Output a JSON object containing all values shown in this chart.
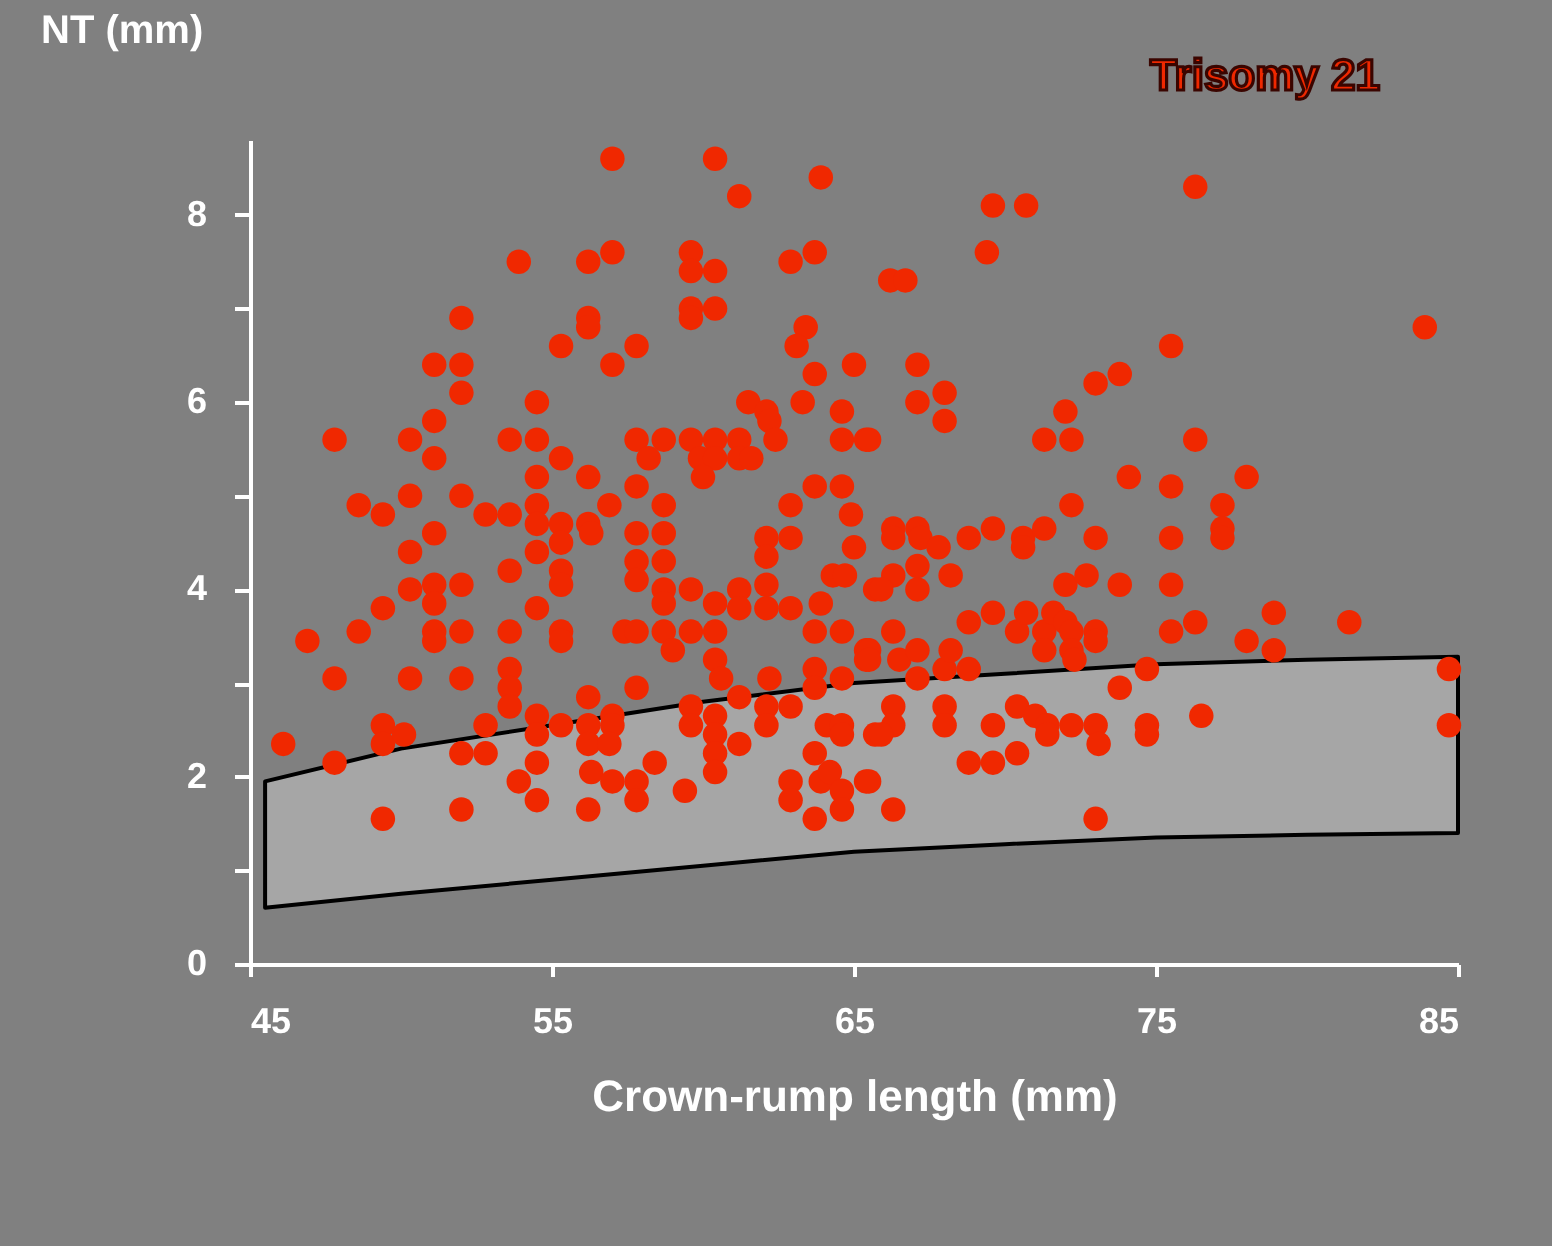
{
  "chart_data": {
    "type": "scatter",
    "xlabel": "Crown-rump length (mm)",
    "ylabel": "NT (mm)",
    "xlim": [
      45,
      85
    ],
    "ylim": [
      0,
      8.8
    ],
    "xticks": [
      45,
      55,
      65,
      75,
      85
    ],
    "yticks": [
      0,
      {
        "value": 1,
        "label": null
      },
      2,
      {
        "value": 3,
        "label": null
      },
      4,
      {
        "value": 5,
        "label": null
      },
      6,
      {
        "value": 7,
        "label": null
      },
      8
    ],
    "grid": false,
    "legend": false,
    "marker": "circle",
    "series": [
      {
        "type": "area",
        "color": "#a6a6a6",
        "x": [
          45.5,
          50,
          55,
          60,
          65,
          70,
          75,
          80,
          85
        ],
        "values": [
          null,
          null,
          null,
          null,
          null,
          null,
          null,
          null,
          null
        ],
        "lower": [
          0.6,
          0.75,
          0.9,
          1.05,
          1.2,
          1.28,
          1.35,
          1.38,
          1.4
        ],
        "upper": [
          1.95,
          2.3,
          2.55,
          2.8,
          3.0,
          3.1,
          3.2,
          3.25,
          3.28
        ]
      },
      {
        "name": "Trisomy 21",
        "color": "#f02800",
        "x": [
          57.0,
          60.4,
          63.9,
          61.2,
          53.9,
          56.2,
          57.0,
          59.6,
          59.6,
          60.4,
          62.9,
          63.7,
          52.0,
          56.2,
          56.2,
          59.6,
          59.6,
          60.4,
          63.4,
          55.3,
          57.8,
          63.1,
          51.1,
          52.0,
          57.0,
          65.0,
          63.7,
          52.0,
          54.5,
          61.5,
          62.1,
          62.2,
          63.3,
          64.6,
          51.1,
          47.8,
          50.3,
          53.6,
          54.5,
          57.8,
          58.7,
          59.6,
          60.4,
          61.2,
          62.4,
          64.6,
          65.4,
          51.1,
          55.3,
          58.2,
          59.9,
          60.4,
          61.2,
          61.6,
          54.5,
          56.2,
          60.0,
          57.8,
          63.7,
          64.6,
          76.3,
          69.6,
          70.7,
          69.4,
          66.2,
          66.7,
          83.9,
          75.5,
          67.1,
          73.8,
          73.0,
          68.0,
          67.1,
          68.0,
          72.0,
          71.3,
          72.2,
          76.3,
          65.5,
          74.1,
          75.5,
          78.0,
          48.6,
          49.4,
          50.3,
          52.0,
          52.8,
          53.6,
          54.5,
          54.5,
          55.3,
          55.3,
          56.2,
          56.3,
          56.9,
          58.7,
          57.8,
          58.7,
          51.1,
          50.3,
          54.5,
          57.8,
          57.8,
          58.7,
          53.6,
          55.3,
          55.3,
          51.1,
          52.0,
          50.3,
          51.1,
          49.4,
          54.5,
          58.7,
          58.7,
          59.6,
          60.4,
          61.2,
          61.2,
          62.1,
          62.1,
          62.9,
          62.9,
          64.9,
          65.0,
          62.1,
          62.1,
          62.9,
          63.9,
          64.3,
          64.7,
          65.7,
          46.9,
          48.6,
          51.1,
          51.1,
          52.0,
          53.6,
          55.3,
          55.3,
          57.4,
          57.8,
          58.7,
          59.6,
          60.4,
          59.0,
          60.4,
          60.6,
          62.2,
          63.7,
          64.6,
          63.7,
          63.7,
          64.6,
          65.4,
          65.4,
          47.8,
          50.3,
          52.0,
          53.6,
          53.6,
          53.6,
          57.8,
          56.2,
          46.1,
          47.8,
          49.4,
          49.4,
          50.1,
          49.4,
          52.0,
          52.0,
          52.8,
          52.8,
          54.5,
          54.5,
          54.5,
          55.3,
          56.2,
          56.2,
          57.0,
          57.0,
          56.9,
          56.3,
          53.9,
          54.5,
          56.2,
          57.0,
          57.8,
          57.8,
          58.4,
          59.4,
          59.6,
          59.6,
          60.4,
          60.4,
          60.4,
          60.4,
          61.2,
          61.2,
          62.1,
          62.1,
          62.9,
          63.7,
          62.9,
          62.9,
          63.9,
          64.2,
          64.6,
          64.6,
          63.7,
          64.1,
          64.6,
          64.6,
          65.7,
          65.4,
          72.2,
          77.2,
          77.2,
          77.2,
          66.3,
          66.3,
          67.1,
          67.2,
          67.8,
          68.8,
          69.6,
          70.6,
          70.6,
          71.3,
          73.0,
          75.5,
          66.3,
          65.9,
          67.1,
          67.1,
          68.2,
          72.0,
          72.7,
          73.8,
          75.5,
          66.3,
          68.8,
          69.6,
          70.4,
          70.7,
          71.3,
          71.6,
          72.0,
          72.2,
          71.3,
          72.2,
          72.3,
          73.0,
          73.0,
          75.5,
          76.3,
          78.0,
          78.9,
          78.9,
          81.4,
          65.5,
          65.5,
          66.5,
          67.1,
          67.1,
          68.0,
          68.2,
          68.8,
          74.7,
          73.8,
          84.7,
          84.7,
          66.3,
          66.3,
          65.9,
          68.0,
          68.0,
          69.6,
          70.4,
          71.0,
          71.4,
          71.4,
          72.2,
          73.0,
          73.1,
          74.7,
          74.7,
          76.5,
          68.8,
          69.6,
          70.4,
          65.5,
          66.3,
          73.0
        ],
        "values": [
          8.6,
          8.6,
          8.4,
          8.2,
          7.5,
          7.5,
          7.6,
          7.6,
          7.4,
          7.4,
          7.5,
          7.6,
          6.9,
          6.9,
          6.8,
          7.0,
          6.9,
          7.0,
          6.8,
          6.6,
          6.6,
          6.6,
          6.4,
          6.4,
          6.4,
          6.4,
          6.3,
          6.1,
          6.0,
          6.0,
          5.9,
          5.8,
          6.0,
          5.9,
          5.8,
          5.6,
          5.6,
          5.6,
          5.6,
          5.6,
          5.6,
          5.6,
          5.6,
          5.6,
          5.6,
          5.6,
          5.6,
          5.4,
          5.4,
          5.4,
          5.4,
          5.4,
          5.4,
          5.4,
          5.2,
          5.2,
          5.2,
          5.1,
          5.1,
          5.1,
          8.3,
          8.1,
          8.1,
          7.6,
          7.3,
          7.3,
          6.8,
          6.6,
          6.4,
          6.3,
          6.2,
          6.1,
          6.0,
          5.8,
          5.9,
          5.6,
          5.6,
          5.6,
          5.6,
          5.2,
          5.1,
          5.2,
          4.9,
          4.8,
          5.0,
          5.0,
          4.8,
          4.8,
          4.9,
          4.7,
          4.7,
          4.5,
          4.7,
          4.6,
          4.9,
          4.9,
          4.6,
          4.6,
          4.6,
          4.4,
          4.4,
          4.3,
          4.1,
          4.3,
          4.2,
          4.2,
          4.05,
          4.05,
          4.05,
          4.0,
          3.85,
          3.8,
          3.8,
          4.0,
          3.85,
          4.0,
          3.85,
          4.0,
          3.8,
          4.55,
          4.35,
          4.55,
          4.9,
          4.8,
          4.45,
          4.05,
          3.8,
          3.8,
          3.85,
          4.15,
          4.15,
          4.0,
          3.45,
          3.55,
          3.55,
          3.45,
          3.55,
          3.55,
          3.55,
          3.45,
          3.55,
          3.55,
          3.55,
          3.55,
          3.55,
          3.35,
          3.25,
          3.05,
          3.05,
          3.55,
          3.55,
          3.15,
          2.95,
          3.05,
          3.35,
          3.25,
          3.05,
          3.05,
          3.05,
          3.15,
          2.95,
          2.75,
          2.95,
          2.85,
          2.35,
          2.15,
          2.55,
          2.35,
          2.45,
          1.55,
          2.25,
          1.65,
          2.55,
          2.25,
          2.65,
          2.45,
          2.15,
          2.55,
          2.55,
          2.35,
          2.65,
          2.55,
          2.35,
          2.05,
          1.95,
          1.75,
          1.65,
          1.95,
          1.95,
          1.75,
          2.15,
          1.85,
          2.75,
          2.55,
          2.65,
          2.45,
          2.25,
          2.05,
          2.85,
          2.35,
          2.75,
          2.55,
          2.75,
          2.25,
          1.95,
          1.75,
          1.95,
          2.05,
          1.85,
          1.65,
          1.55,
          2.55,
          2.55,
          2.45,
          2.45,
          1.95,
          4.9,
          4.9,
          4.65,
          4.55,
          4.65,
          4.55,
          4.65,
          4.55,
          4.45,
          4.55,
          4.65,
          4.55,
          4.45,
          4.65,
          4.55,
          4.55,
          4.15,
          4.0,
          4.25,
          4.0,
          4.15,
          4.05,
          4.15,
          4.05,
          4.05,
          3.55,
          3.65,
          3.75,
          3.55,
          3.75,
          3.55,
          3.75,
          3.65,
          3.55,
          3.35,
          3.35,
          3.25,
          3.55,
          3.45,
          3.55,
          3.65,
          3.45,
          3.75,
          3.35,
          3.65,
          3.35,
          3.25,
          3.25,
          3.35,
          3.05,
          3.15,
          3.35,
          3.15,
          3.15,
          2.95,
          3.15,
          2.55,
          2.75,
          2.55,
          2.45,
          2.75,
          2.55,
          2.55,
          2.75,
          2.65,
          2.55,
          2.45,
          2.55,
          2.55,
          2.35,
          2.55,
          2.45,
          2.65,
          2.15,
          2.15,
          2.25,
          1.95,
          1.65,
          1.55
        ]
      }
    ]
  }
}
